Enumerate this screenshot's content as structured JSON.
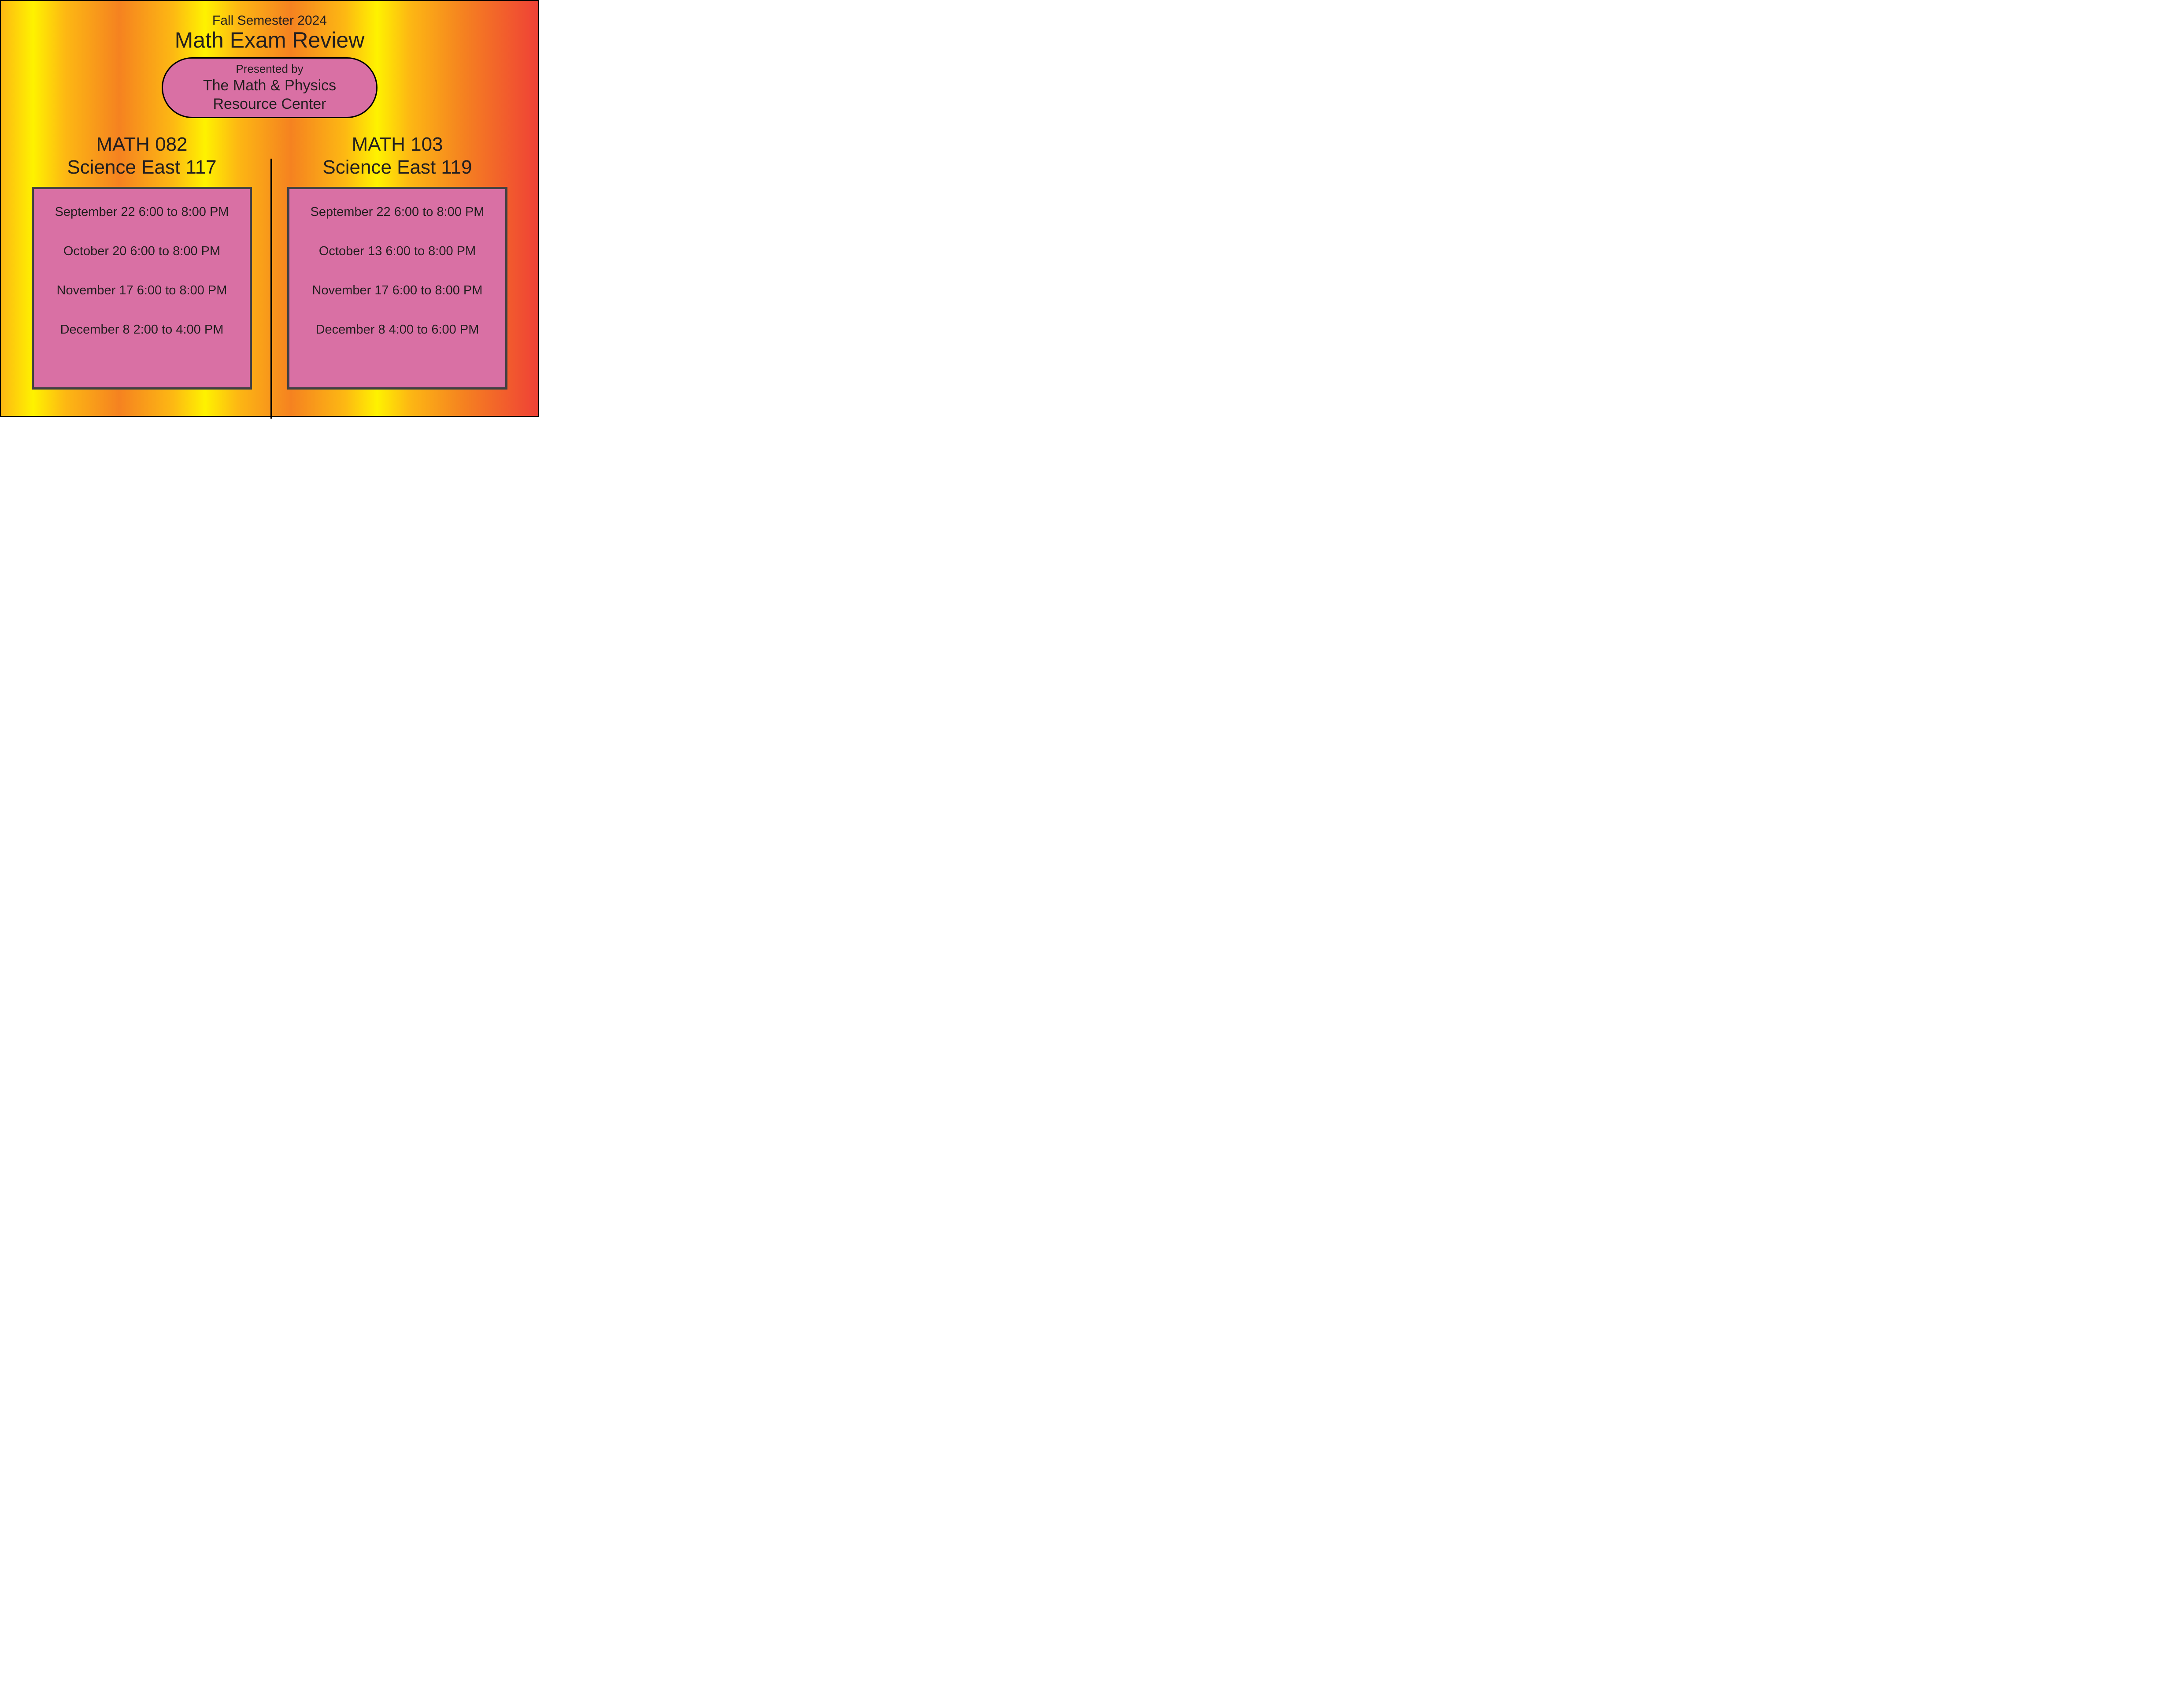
{
  "colors": {
    "pill_bg": "#d970a4",
    "box_bg": "#d970a4",
    "box_border": "#414042",
    "text": "#231f20",
    "page_border": "#000000",
    "gradient_stops": [
      "#fdb813",
      "#fef200",
      "#fdb813",
      "#f58220",
      "#fdb813",
      "#fef200",
      "#fdb813",
      "#f58220",
      "#fdb813",
      "#fef200",
      "#fdb813",
      "#f58220",
      "#ef4136"
    ]
  },
  "header": {
    "subtitle": "Fall Semester 2024",
    "title": "Math Exam Review"
  },
  "presenter": {
    "line1": "Presented by",
    "line2": "The Math & Physics",
    "line3": "Resource Center"
  },
  "left": {
    "course": "MATH 082",
    "room": "Science East 117",
    "sessions": [
      "September 22 6:00 to 8:00 PM",
      "October 20 6:00 to 8:00 PM",
      "November 17 6:00 to 8:00 PM",
      "December 8 2:00 to 4:00 PM"
    ]
  },
  "right": {
    "course": "MATH 103",
    "room": "Science East 119",
    "sessions": [
      "September 22 6:00 to 8:00 PM",
      "October 13 6:00 to 8:00 PM",
      "November 17 6:00 to 8:00 PM",
      "December 8 4:00 to 6:00 PM"
    ]
  }
}
